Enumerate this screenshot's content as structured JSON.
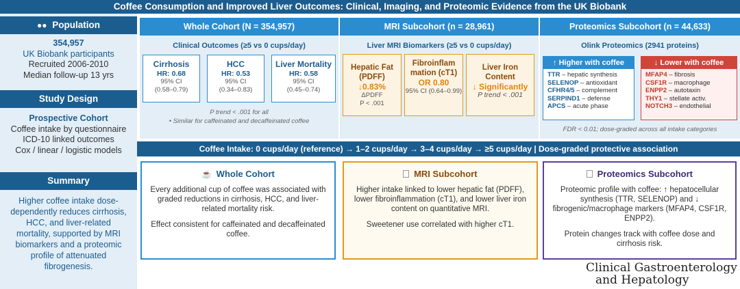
{
  "title": "Coffee Consumption and Improved Liver Outcomes: Clinical, Imaging, and Proteomic Evidence from the UK Biobank",
  "sidebar": {
    "population": {
      "heading": "Population",
      "icon": "people-icon",
      "count": "354,957",
      "line1": "UK Biobank participants",
      "line2": "Recruited 2006-2010",
      "line3": "Median follow-up 13 yrs"
    },
    "design": {
      "heading": "Study Design",
      "subhead": "Prospective Cohort",
      "line1": "Coffee intake by questionnaire",
      "line2": "ICD-10 linked outcomes",
      "line3": "Cox / linear / logistic models"
    },
    "summary": {
      "heading": "Summary",
      "text": "Higher coffee intake dose-dependently reduces cirrhosis, HCC, and liver-related mortality, supported by MRI biomarkers and a proteomic profile of attenuated fibrogenesis."
    }
  },
  "whole_cohort": {
    "header": "Whole Cohort  (N = 354,957)",
    "subtitle": "Clinical Outcomes  (≥5 vs  0 cups/day)",
    "outcomes": [
      {
        "name": "Cirrhosis",
        "hr": "HR: 0.68",
        "ci_label": "95% CI",
        "ci": "(0.58–0.79)"
      },
      {
        "name": "HCC",
        "hr": "HR: 0.53",
        "ci_label": "95% CI",
        "ci": "(0.34–0.83)"
      },
      {
        "name": "Liver Mortality",
        "hr": "HR: 0.58",
        "ci_label": "95% CI",
        "ci": "(0.45–0.74)"
      }
    ],
    "note1": "P trend < .001 for all",
    "note2": "•  Similar for caffeinated and decaffeinated coffee"
  },
  "mri": {
    "header": "MRI Subcohort  (n = 28,961)",
    "subtitle": "Liver MRI Biomarkers  (≥5 vs  0 cups/day)",
    "fat": {
      "name": "Hepatic Fat (PDFF)",
      "value": "↓0.83%",
      "l1": "ΔPDFF",
      "l2": "P < .001"
    },
    "fibro": {
      "name": "Fibroinflam mation (cT1)",
      "value": "OR 0.80",
      "l1": "95% CI (0.64–0.99)"
    },
    "iron": {
      "name": "Liver Iron Content",
      "value": "↓ Significantly",
      "l1": "P trend < .001"
    }
  },
  "proteomics": {
    "header": "Proteomics Subcohort  (n = 44,633)",
    "subtitle": "Olink Proteomics  (2941 proteins)",
    "higher": {
      "heading": "↑ Higher with coffee",
      "items": [
        {
          "p": "TTR",
          "d": " – hepatic synthesis"
        },
        {
          "p": "SELENOP",
          "d": " – antioxidant"
        },
        {
          "p": "CFHR4/5",
          "d": " – complement"
        },
        {
          "p": "SERPIND1",
          "d": " – defense"
        },
        {
          "p": "APCS",
          "d": " – acute phase"
        }
      ]
    },
    "lower": {
      "heading": "↓ Lower with coffee",
      "items": [
        {
          "p": "MFAP4",
          "d": " – fibrosis"
        },
        {
          "p": "CSF1R",
          "d": " – macrophage"
        },
        {
          "p": "ENPP2",
          "d": " – autotaxin"
        },
        {
          "p": "THY1",
          "d": " – stellate activ."
        },
        {
          "p": "NOTCH3",
          "d": " – endothelial"
        }
      ]
    },
    "note": "FDR < 0.01; dose-graded across all intake categories"
  },
  "intake_bar": "Coffee Intake:   0 cups/day (reference)   →   1–2 cups/day   →   3–4 cups/day   →   ≥5 cups/day   |   Dose-graded protective association",
  "summary_boxes": {
    "whole": {
      "icon": "coffee-cup-icon",
      "title": "Whole Cohort",
      "p1": "Every additional cup of coffee was associated with graded reductions in cirrhosis, HCC, and liver-related mortality risk.",
      "p2": "Effect consistent for caffeinated and decaffeinated coffee."
    },
    "mri": {
      "icon": "mri-scan-icon",
      "title": "MRI Subcohort",
      "p1": "Higher intake linked to lower hepatic fat (PDFF), lower fibroinflammation (cT1), and lower liver iron content on quantitative MRI.",
      "p2": "Sweetener use correlated with higher cT1."
    },
    "prot": {
      "icon": "protein-icon",
      "title": "Proteomics Subcohort",
      "p1": "Proteomic profile with coffee: ↑ hepatocellular synthesis (TTR, SELENOP) and ↓ fibrogenic/macrophage markers (MFAP4, CSF1R, ENPP2).",
      "p2": "Protein changes track with coffee dose and cirrhosis risk."
    }
  },
  "journal": {
    "line1": "Clinical Gastroenterology",
    "line2": "and Hepatology"
  },
  "colors": {
    "navy": "#1c5d8f",
    "blue": "#2b8dd0",
    "orange": "#e29a1a",
    "red": "#d0453a",
    "purple": "#5a3e9b"
  }
}
